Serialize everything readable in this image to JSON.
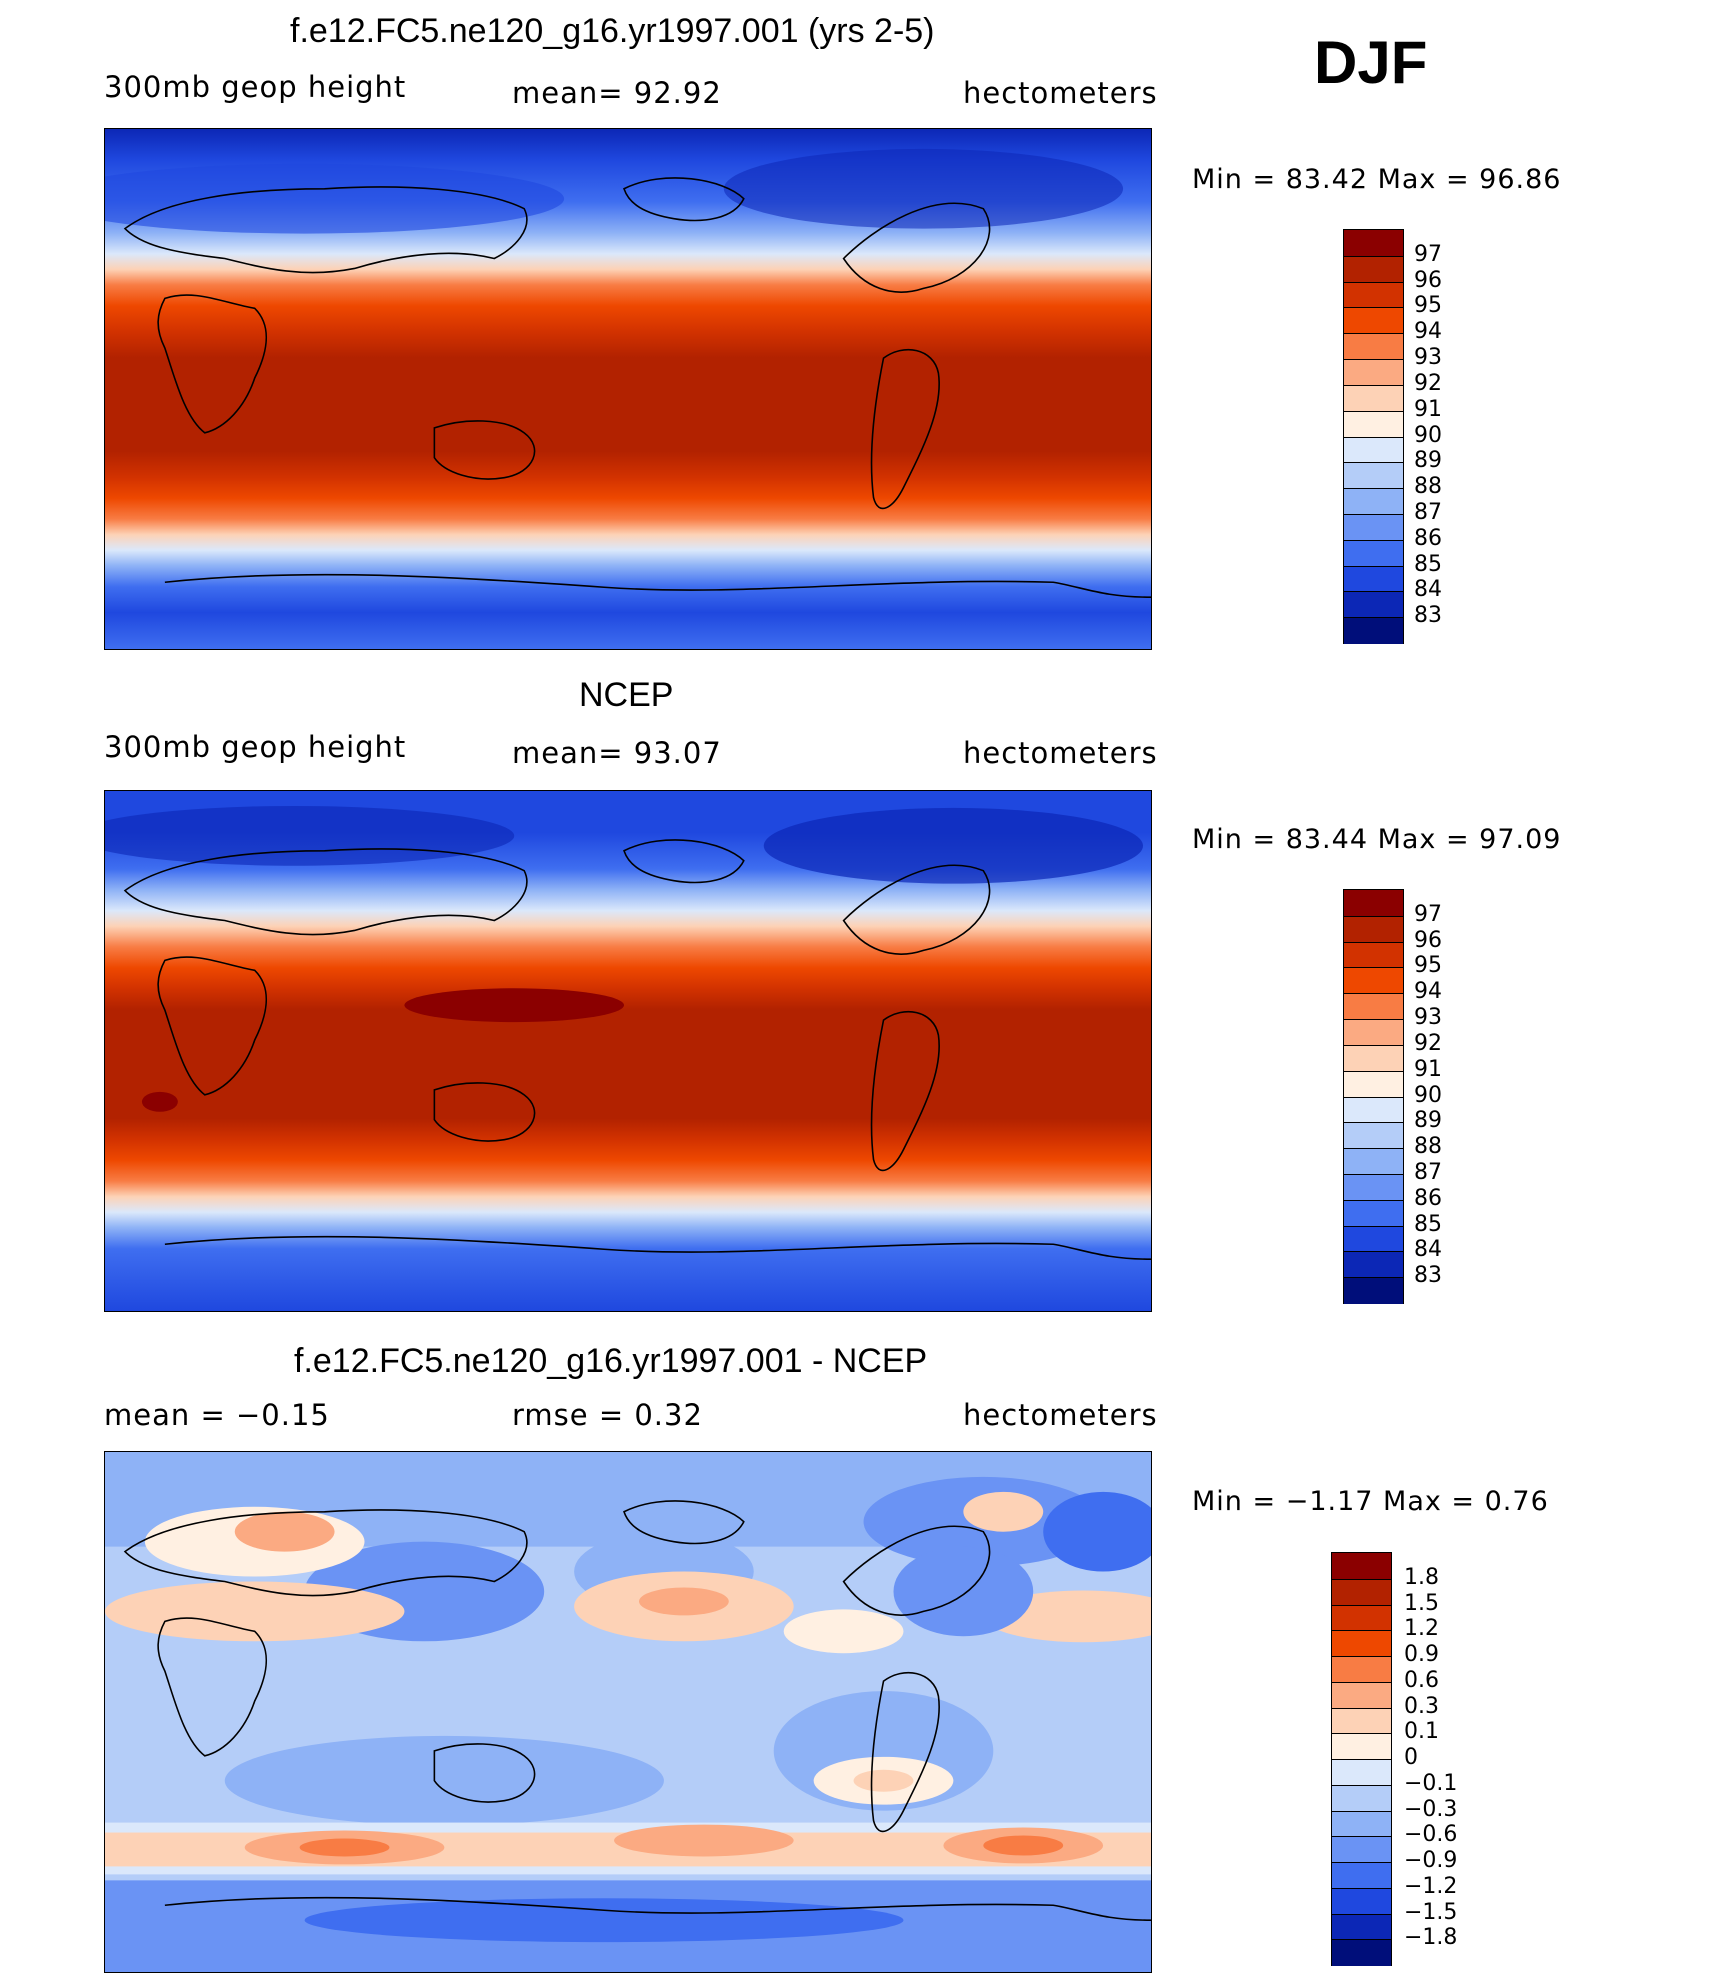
{
  "season": "DJF",
  "panels": [
    {
      "title": "f.e12.FC5.ne120_g16.yr1997.001 (yrs 2-5)",
      "left_label": "300mb geop height",
      "center_label": "mean=  92.92",
      "right_label": "hectometers",
      "min_max": "Min =   83.42  Max =   96.86",
      "colorbar_levels": [
        "97",
        "96",
        "95",
        "94",
        "93",
        "92",
        "91",
        "90",
        "89",
        "88",
        "87",
        "86",
        "85",
        "84",
        "83"
      ],
      "colorbar_colors": [
        "#8b0000",
        "#b22200",
        "#d23200",
        "#ee4800",
        "#f87c44",
        "#fbaa82",
        "#fdd2b6",
        "#fff0e2",
        "#dbe8fb",
        "#b4cdf8",
        "#8eb2f6",
        "#6a93f4",
        "#3f6ef0",
        "#1f48df",
        "#0c27b6",
        "#000e7a"
      ]
    },
    {
      "title": "NCEP",
      "left_label": "300mb geop height",
      "center_label": "mean=  93.07",
      "right_label": "hectometers",
      "min_max": "Min =   83.44  Max =   97.09",
      "colorbar_levels": [
        "97",
        "96",
        "95",
        "94",
        "93",
        "92",
        "91",
        "90",
        "89",
        "88",
        "87",
        "86",
        "85",
        "84",
        "83"
      ],
      "colorbar_colors": [
        "#8b0000",
        "#b22200",
        "#d23200",
        "#ee4800",
        "#f87c44",
        "#fbaa82",
        "#fdd2b6",
        "#fff0e2",
        "#dbe8fb",
        "#b4cdf8",
        "#8eb2f6",
        "#6a93f4",
        "#3f6ef0",
        "#1f48df",
        "#0c27b6",
        "#000e7a"
      ]
    },
    {
      "title": "f.e12.FC5.ne120_g16.yr1997.001 - NCEP",
      "left_label": "mean =   −0.15",
      "center_label": "rmse =    0.32",
      "right_label": "hectometers",
      "min_max": "Min =   −1.17  Max =     0.76",
      "colorbar_levels": [
        "1.8",
        "1.5",
        "1.2",
        "0.9",
        "0.6",
        "0.3",
        "0.1",
        "0",
        "−0.1",
        "−0.3",
        "−0.6",
        "−0.9",
        "−1.2",
        "−1.5",
        "−1.8"
      ],
      "colorbar_colors": [
        "#8b0000",
        "#b22200",
        "#d23200",
        "#ee4800",
        "#f87c44",
        "#fbaa82",
        "#fdd2b6",
        "#fff0e2",
        "#dbe8fb",
        "#b4cdf8",
        "#8eb2f6",
        "#6a93f4",
        "#3f6ef0",
        "#1f48df",
        "#0c27b6",
        "#000e7a"
      ]
    }
  ]
}
